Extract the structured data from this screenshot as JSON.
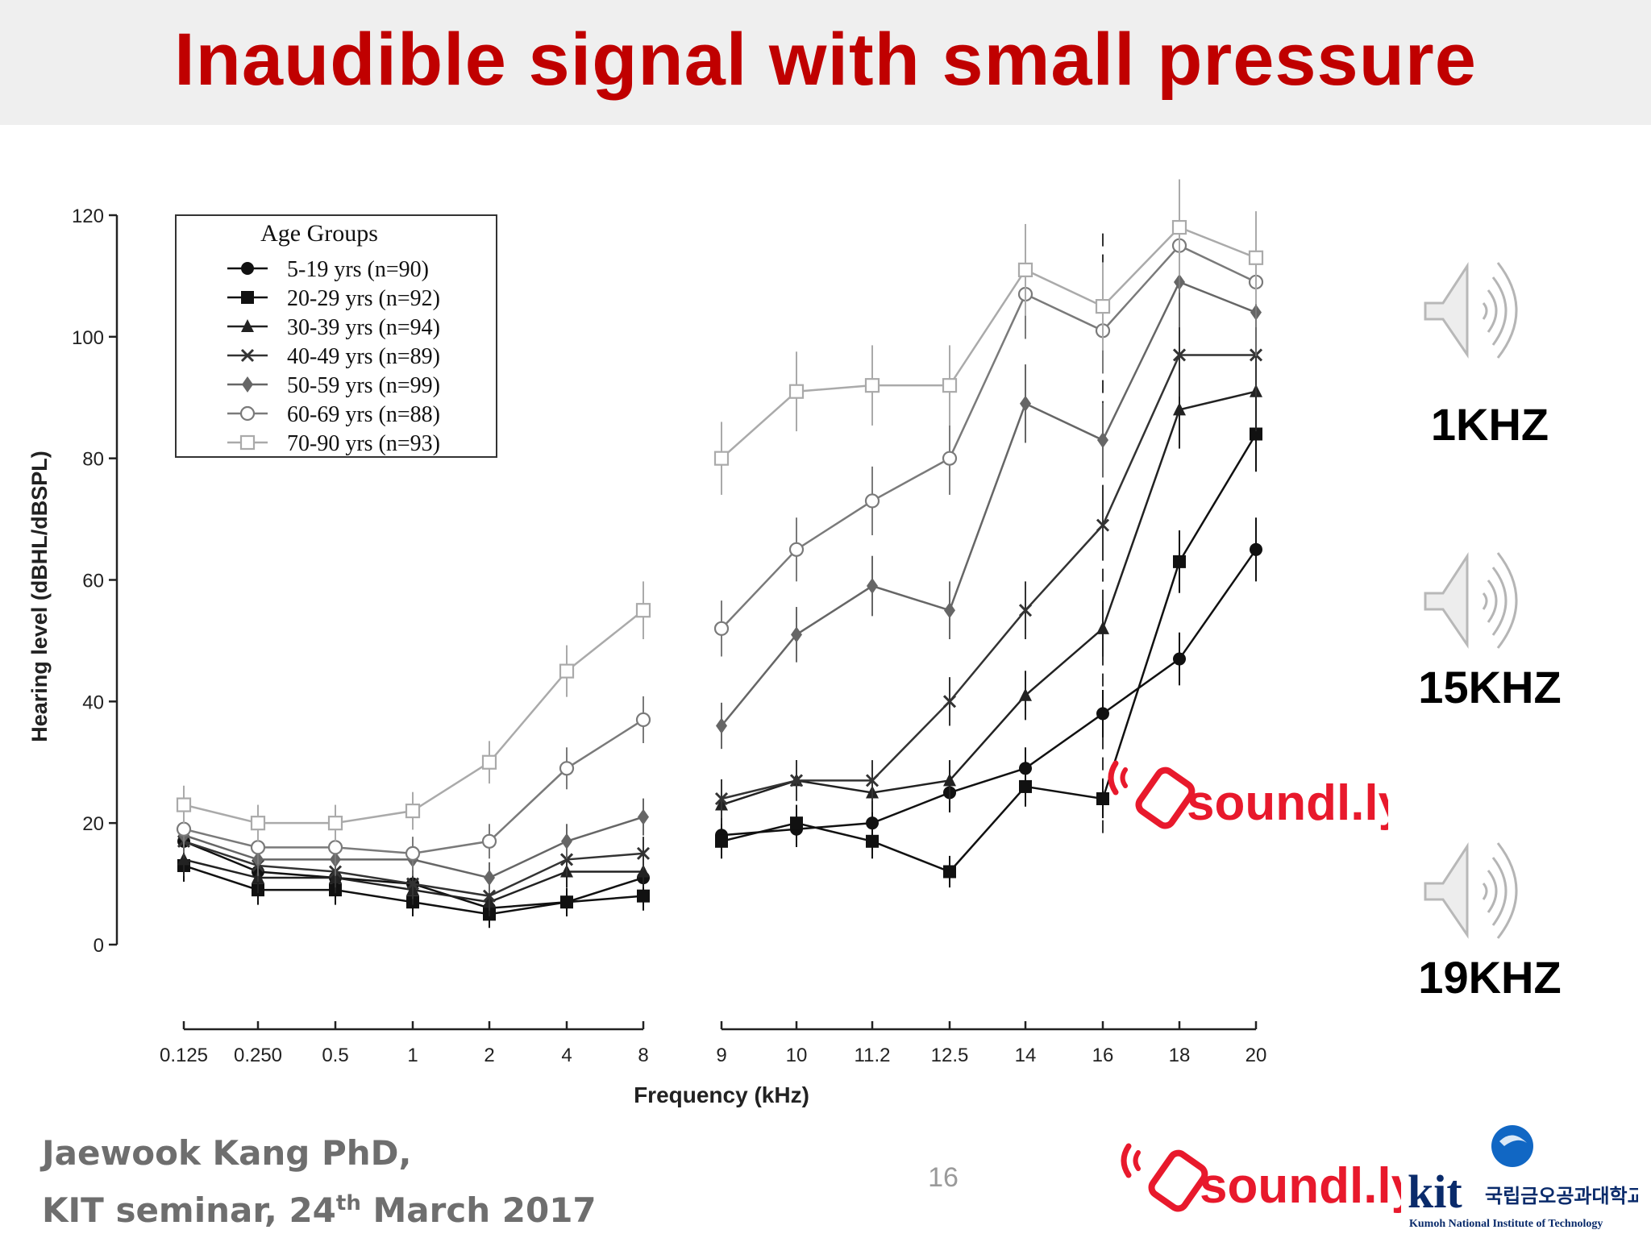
{
  "slide": {
    "title": "Inaudible signal with small pressure",
    "page_number": "16",
    "footer_line1": "Jaewook Kang PhD,",
    "footer_line2_pre": "KIT seminar, 24",
    "footer_line2_sup": "th",
    "footer_line2_post": " March 2017",
    "brand_logo_text": "soundl.ly",
    "kit_logo_text": "kit",
    "kit_logo_korean": "국립금오공과대학교",
    "kit_logo_english": "Kumoh National Institute of Technology"
  },
  "speakers": [
    {
      "label": "1KHZ",
      "icon": "speaker-sound-icon"
    },
    {
      "label": "15KHZ",
      "icon": "speaker-sound-icon"
    },
    {
      "label": "19KHZ",
      "icon": "speaker-sound-icon"
    }
  ],
  "colors": {
    "title": "#c00000",
    "brand": "#e8192c",
    "footer": "#6e6e6e"
  },
  "chart_data": {
    "type": "line",
    "ylabel": "Hearing level (dBHL/dBSPL)",
    "xlabel": "Frequency (kHz)",
    "ylim": [
      0,
      120
    ],
    "yticks": [
      0,
      20,
      40,
      60,
      80,
      100,
      120
    ],
    "categories": [
      "0.125",
      "0.250",
      "0.5",
      "1",
      "2",
      "4",
      "8",
      "9",
      "10",
      "11.2",
      "12.5",
      "14",
      "16",
      "18",
      "20"
    ],
    "legend_title": "Age Groups",
    "legend_position": "top-left",
    "grid": false,
    "series": [
      {
        "name": "5-19 yrs (n=90)",
        "marker": "filled-circle",
        "color": "#111111",
        "values": [
          17,
          12,
          11,
          10,
          6,
          7,
          11,
          18,
          19,
          20,
          25,
          29,
          38,
          47,
          65
        ]
      },
      {
        "name": "20-29 yrs (n=92)",
        "marker": "filled-square",
        "color": "#111111",
        "values": [
          13,
          9,
          9,
          7,
          5,
          7,
          8,
          17,
          20,
          17,
          12,
          26,
          24,
          63,
          84
        ]
      },
      {
        "name": "30-39 yrs (n=94)",
        "marker": "filled-triangle",
        "color": "#222222",
        "values": [
          14,
          11,
          11,
          9,
          7,
          12,
          12,
          23,
          27,
          25,
          27,
          41,
          52,
          88,
          91
        ]
      },
      {
        "name": "40-49 yrs (n=89)",
        "marker": "x-mark",
        "color": "#333333",
        "values": [
          17,
          13,
          12,
          10,
          8,
          14,
          15,
          24,
          27,
          27,
          40,
          55,
          69,
          97,
          97
        ]
      },
      {
        "name": "50-59 yrs (n=99)",
        "marker": "filled-diamond",
        "color": "#666666",
        "values": [
          18,
          14,
          14,
          14,
          11,
          17,
          21,
          36,
          51,
          59,
          55,
          89,
          83,
          109,
          104
        ]
      },
      {
        "name": "60-69 yrs (n=88)",
        "marker": "open-circle",
        "color": "#7a7a7a",
        "values": [
          19,
          16,
          16,
          15,
          17,
          29,
          37,
          52,
          65,
          73,
          80,
          107,
          101,
          115,
          109
        ]
      },
      {
        "name": "70-90 yrs (n=93)",
        "marker": "open-square",
        "color": "#aaaaaa",
        "values": [
          23,
          20,
          20,
          22,
          30,
          45,
          55,
          80,
          91,
          92,
          92,
          111,
          105,
          118,
          113
        ]
      }
    ]
  }
}
